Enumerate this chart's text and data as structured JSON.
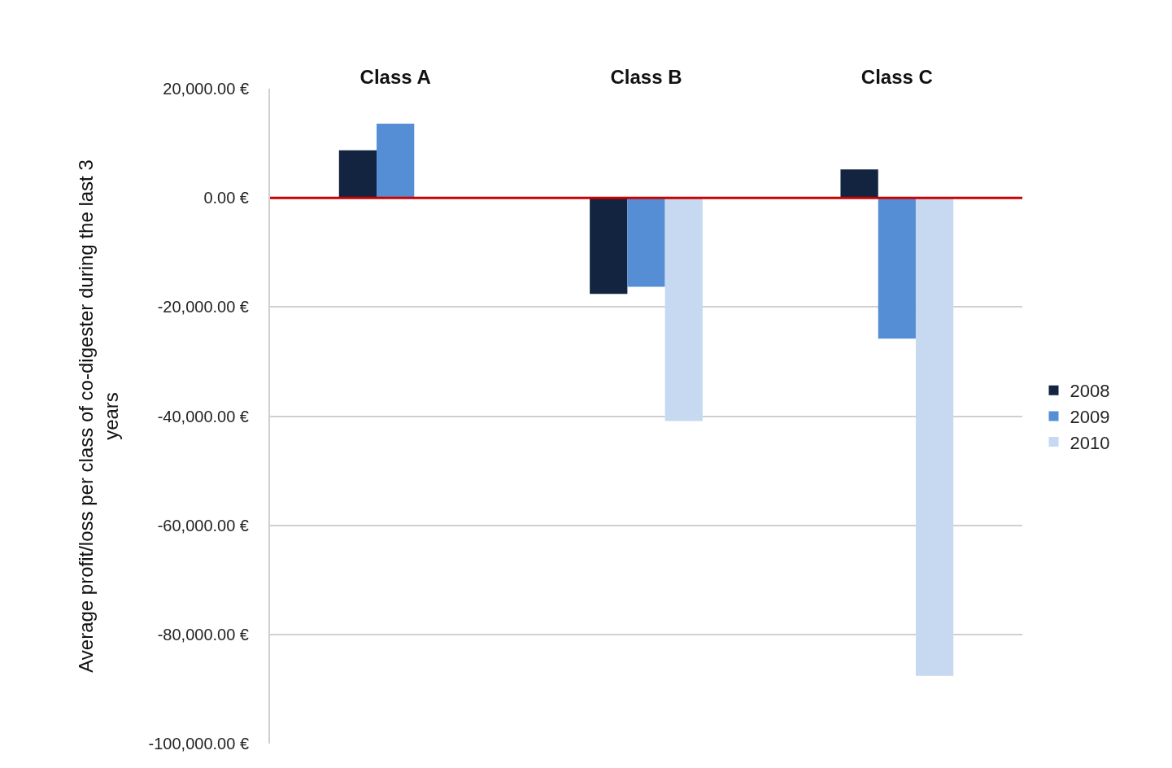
{
  "chart_data": {
    "type": "bar",
    "ylabel": "Average profit/loss per class of co-digester during the last 3 years",
    "categories": [
      "Class A",
      "Class B",
      "Class C"
    ],
    "series": [
      {
        "name": "2008",
        "color": "#12243f",
        "values": [
          8700,
          -17600,
          5200
        ]
      },
      {
        "name": "2009",
        "color": "#558ed5",
        "values": [
          13600,
          -16300,
          -25800
        ]
      },
      {
        "name": "2010",
        "color": "#c6d9f0",
        "values": [
          null,
          -40900,
          -87600
        ]
      }
    ],
    "ylim": [
      -100000,
      20000
    ],
    "yticks": [
      {
        "value": -100000,
        "label": "-100,000.00 €"
      },
      {
        "value": -80000,
        "label": "-80,000.00 €"
      },
      {
        "value": -60000,
        "label": "-60,000.00 €"
      },
      {
        "value": -40000,
        "label": "-40,000.00 €"
      },
      {
        "value": -20000,
        "label": "-20,000.00 €"
      },
      {
        "value": 0,
        "label": "0.00 €"
      },
      {
        "value": 20000,
        "label": "20,000.00 €"
      }
    ],
    "ref_lines": [
      {
        "axis": "y",
        "value": 0,
        "color": "#cc0000"
      }
    ],
    "grid": "y",
    "legend": "right"
  }
}
